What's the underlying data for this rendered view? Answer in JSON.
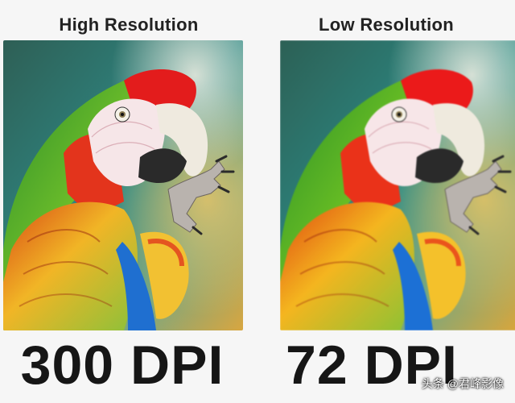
{
  "left": {
    "heading": "High Resolution",
    "dpi_label": "300 DPI",
    "image_description": "parrot-sharp"
  },
  "right": {
    "heading": "Low Resolution",
    "dpi_label": "72 DPI",
    "image_description": "parrot-blurred"
  },
  "watermark": "头条 @君峰影像",
  "colors": {
    "background": "#f6f6f6",
    "text": "#161616",
    "photo_bg_green": "#2f6e5a",
    "photo_bg_teal": "#3d9aa0",
    "photo_bg_yellow": "#d8a640",
    "parrot_red": "#e41f1f",
    "parrot_green": "#43a72a",
    "parrot_yellow": "#f0b52a",
    "parrot_blue": "#1f6fd0",
    "beak": "#f1eee6"
  }
}
